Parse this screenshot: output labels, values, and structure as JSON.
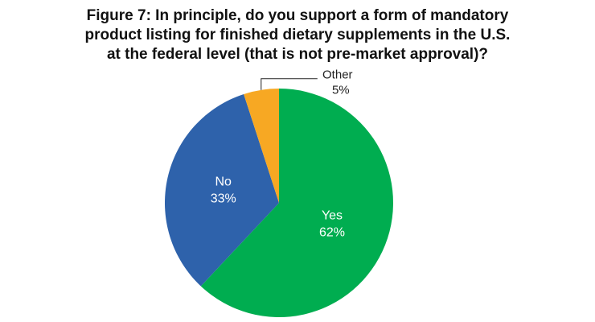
{
  "chart_data": {
    "type": "pie",
    "title": [
      "Figure 7: In principle, do you support a form of mandatory",
      "product listing for finished dietary supplements in the U.S.",
      "at the federal level (that is not pre-market approval)?"
    ],
    "categories": [
      "Yes",
      "No",
      "Other"
    ],
    "values": [
      62,
      33,
      5
    ],
    "value_labels": [
      "62%",
      "33%",
      "5%"
    ],
    "colors": [
      "#00ad50",
      "#2e62ab",
      "#f7a823"
    ]
  }
}
